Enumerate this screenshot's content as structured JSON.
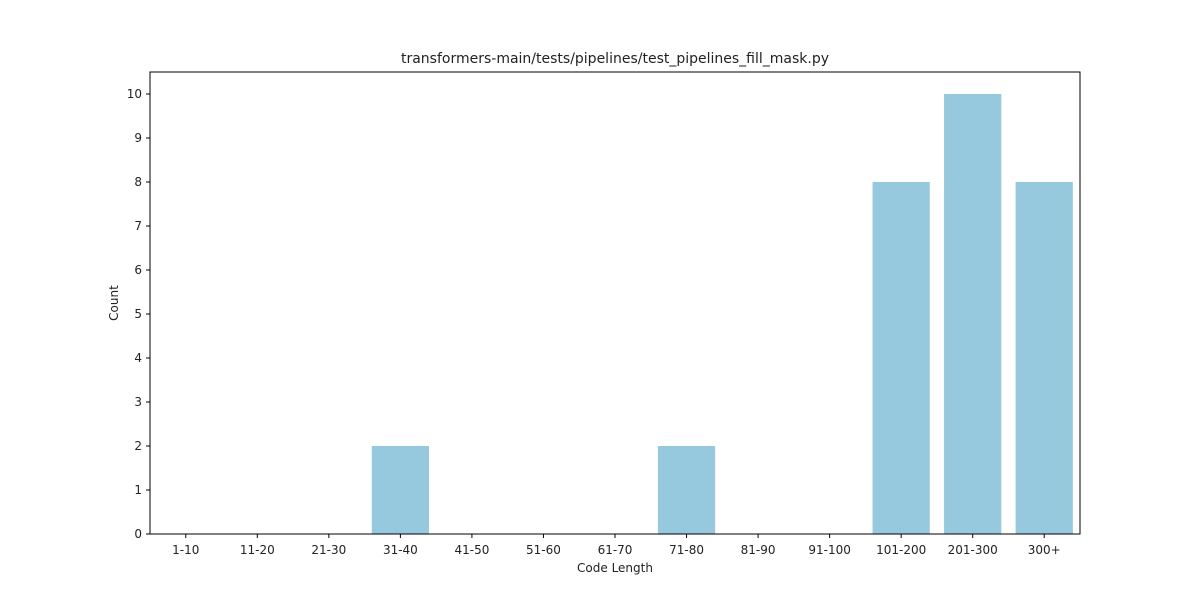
{
  "chart_data": {
    "type": "bar",
    "title": "transformers-main/tests/pipelines/test_pipelines_fill_mask.py",
    "xlabel": "Code Length",
    "ylabel": "Count",
    "categories": [
      "1-10",
      "11-20",
      "21-30",
      "31-40",
      "41-50",
      "51-60",
      "61-70",
      "71-80",
      "81-90",
      "91-100",
      "101-200",
      "201-300",
      "300+"
    ],
    "values": [
      0,
      0,
      0,
      2,
      0,
      0,
      0,
      2,
      0,
      0,
      8,
      10,
      8
    ],
    "ylim": [
      0,
      10.5
    ],
    "yticks": [
      0,
      1,
      2,
      3,
      4,
      5,
      6,
      7,
      8,
      9,
      10
    ],
    "grid": false,
    "legend": "none",
    "bar_color": "#96c9de"
  }
}
